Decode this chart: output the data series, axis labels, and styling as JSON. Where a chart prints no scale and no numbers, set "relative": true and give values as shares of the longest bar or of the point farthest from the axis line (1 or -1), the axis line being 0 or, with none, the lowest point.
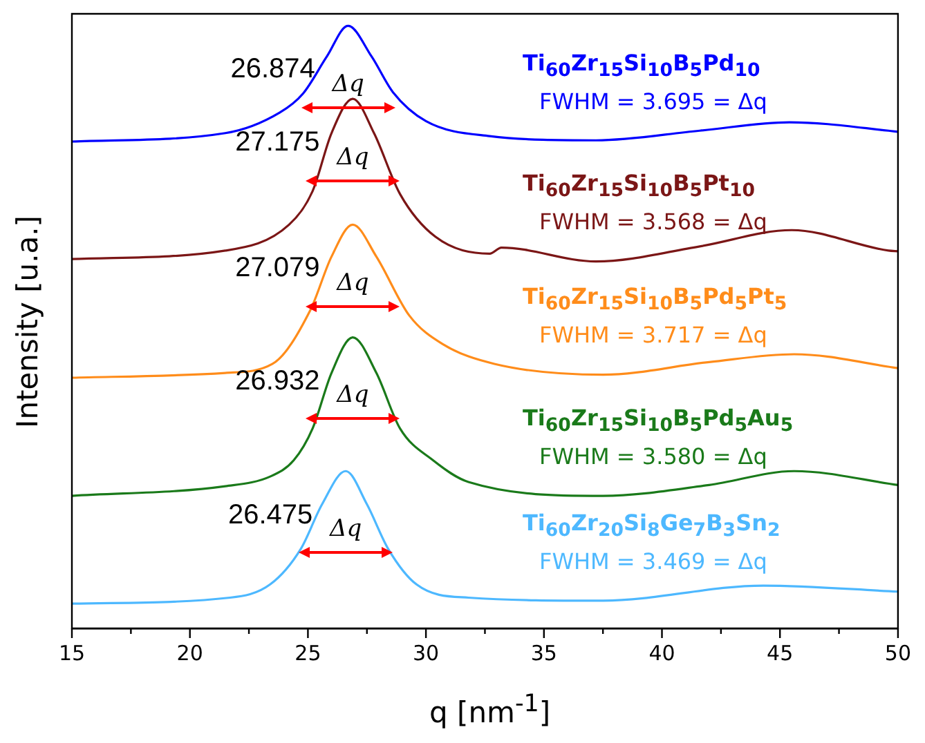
{
  "chart_data": {
    "type": "line",
    "relative": true,
    "xlabel": "q [nm$^{-1}$]",
    "ylabel": "Intensity [u.a.]",
    "xlim": [
      15,
      50
    ],
    "xticks": [
      15,
      {
        "value": 17.5,
        "label": null
      },
      20,
      {
        "value": 22.5,
        "label": null
      },
      25,
      {
        "value": 27.5,
        "label": null
      },
      30,
      {
        "value": 32.5,
        "label": null
      },
      35,
      {
        "value": 37.5,
        "label": null
      },
      40,
      {
        "value": 42.5,
        "label": null
      },
      45,
      {
        "value": 47.5,
        "label": null
      },
      50
    ],
    "grid": false,
    "legend": false,
    "marker": "none",
    "line_style": "solid",
    "series": [
      {
        "name": "Ti$_{60}$Zr$_{15}$Si$_{10}$B$_{5}$Pd$_{10}$",
        "color": "#0000ff",
        "x": [
          15,
          21.5,
          23.8,
          24.8,
          25.8,
          26.7,
          27.7,
          28.6,
          30,
          32.7,
          37.2,
          41.6,
          45.4,
          49.6,
          50
        ],
        "values": [
          0.808,
          0.822,
          0.856,
          0.888,
          0.949,
          1,
          0.949,
          0.89,
          0.842,
          0.817,
          0.81,
          0.826,
          0.84,
          0.826,
          0.824
        ]
      },
      {
        "name": "Ti$_{60}$Zr$_{15}$Si$_{10}$B$_{5}$Pt$_{10}$",
        "color": "#7b1616",
        "x": [
          15,
          21.5,
          24.2,
          25.2,
          26,
          26.9,
          27.8,
          28.9,
          30.4,
          32.7,
          33.2,
          37.2,
          41.6,
          45.5,
          49.6,
          50
        ],
        "values": [
          0.613,
          0.627,
          0.67,
          0.726,
          0.822,
          0.879,
          0.822,
          0.721,
          0.65,
          0.622,
          0.632,
          0.609,
          0.634,
          0.661,
          0.627,
          0.626
        ]
      },
      {
        "name": "Ti$_{60}$Zr$_{15}$Si$_{10}$B$_{5}$Pd$_{5}$Pt$_{5}$",
        "color": "#ff8c1a",
        "x": [
          15,
          21.5,
          23.5,
          25.1,
          26,
          26.9,
          27.9,
          29.3,
          30.7,
          32.9,
          37.5,
          42,
          45.6,
          50
        ],
        "values": [
          0.416,
          0.424,
          0.439,
          0.528,
          0.617,
          0.67,
          0.617,
          0.519,
          0.472,
          0.439,
          0.421,
          0.442,
          0.455,
          0.432
        ]
      },
      {
        "name": "Ti$_{60}$Zr$_{15}$Si$_{10}$B$_{5}$Pd$_{5}$Au$_{5}$",
        "color": "#1a7a1a",
        "x": [
          15,
          21.5,
          23.4,
          24.4,
          25.2,
          26,
          26.9,
          27.9,
          28.9,
          30.3,
          31.8,
          37.5,
          42,
          45.6,
          50
        ],
        "values": [
          0.22,
          0.236,
          0.252,
          0.279,
          0.332,
          0.424,
          0.483,
          0.424,
          0.332,
          0.279,
          0.243,
          0.22,
          0.238,
          0.261,
          0.238
        ]
      },
      {
        "name": "Ti$_{60}$Zr$_{20}$Si$_{8}$Ge$_{7}$B$_{3}$Sn$_{2}$",
        "color": "#4db8ff",
        "x": [
          15,
          21.7,
          23.4,
          24.7,
          25.6,
          26.6,
          27.5,
          28.4,
          29.6,
          31.8,
          37.5,
          44.3,
          50
        ],
        "values": [
          0.041,
          0.051,
          0.073,
          0.132,
          0.206,
          0.261,
          0.206,
          0.132,
          0.073,
          0.051,
          0.046,
          0.071,
          0.061
        ]
      }
    ],
    "annotations": [
      "26.874",
      "Δq",
      "FWHM = 3.695 = Δq",
      "27.175",
      "Δq",
      "FWHM = 3.568 = Δq",
      "27.079",
      "Δq",
      "FWHM = 3.717 = Δq",
      "26.932",
      "Δq",
      "FWHM = 3.580 = Δq",
      "26.475",
      "Δq",
      "FWHM = 3.469 = Δq"
    ]
  }
}
